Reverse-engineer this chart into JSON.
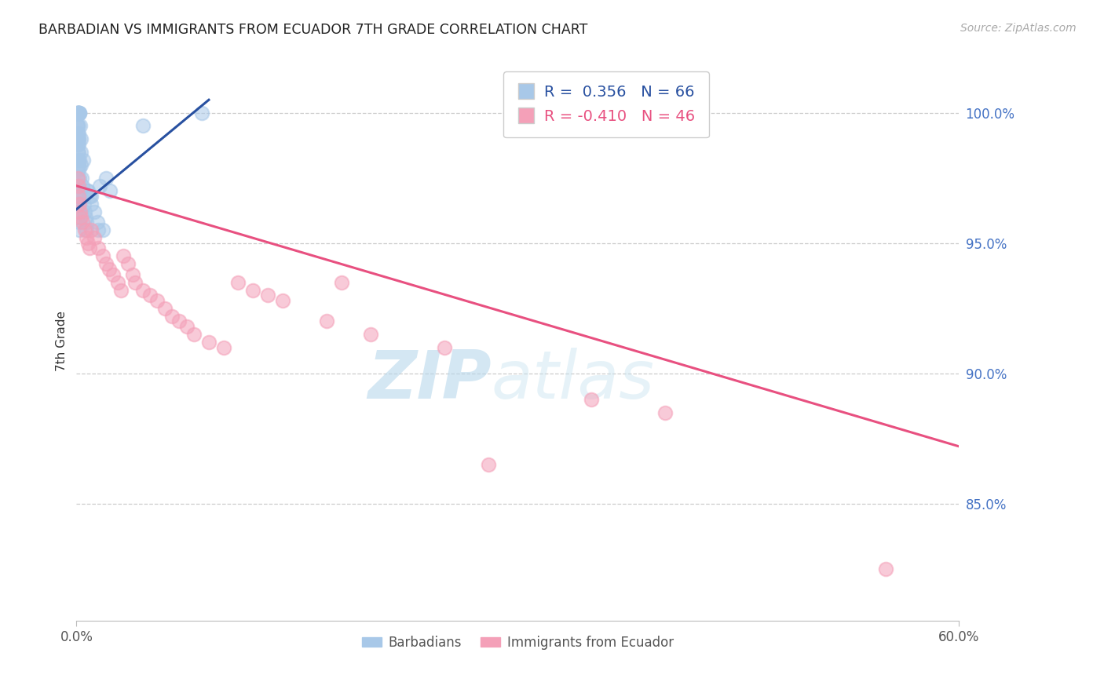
{
  "title": "BARBADIAN VS IMMIGRANTS FROM ECUADOR 7TH GRADE CORRELATION CHART",
  "source": "Source: ZipAtlas.com",
  "ylabel": "7th Grade",
  "xmin": 0.0,
  "xmax": 60.0,
  "ymin": 80.5,
  "ymax": 102.0,
  "yticks": [
    85.0,
    90.0,
    95.0,
    100.0
  ],
  "ytick_labels": [
    "85.0%",
    "90.0%",
    "95.0%",
    "100.0%"
  ],
  "r_blue": 0.356,
  "n_blue": 66,
  "r_pink": -0.41,
  "n_pink": 46,
  "blue_color": "#A8C8E8",
  "pink_color": "#F4A0B8",
  "blue_line_color": "#2850A0",
  "pink_line_color": "#E85080",
  "watermark_zip": "ZIP",
  "watermark_atlas": "atlas",
  "blue_line_x0": 0.0,
  "blue_line_x1": 9.0,
  "blue_line_y0": 96.3,
  "blue_line_y1": 100.5,
  "pink_line_x0": 0.0,
  "pink_line_x1": 60.0,
  "pink_line_y0": 97.2,
  "pink_line_y1": 87.2,
  "blue_scatter_x": [
    0.05,
    0.08,
    0.1,
    0.1,
    0.12,
    0.15,
    0.15,
    0.18,
    0.2,
    0.22,
    0.1,
    0.12,
    0.08,
    0.1,
    0.12,
    0.15,
    0.15,
    0.18,
    0.2,
    0.22,
    0.1,
    0.1,
    0.12,
    0.1,
    0.08,
    0.1,
    0.12,
    0.1,
    0.08,
    0.1,
    0.12,
    0.15,
    0.15,
    0.18,
    0.1,
    0.12,
    0.15,
    0.18,
    0.2,
    0.22,
    0.25,
    0.28,
    0.3,
    0.35,
    0.4,
    0.5,
    0.55,
    0.6,
    0.65,
    0.7,
    0.8,
    0.9,
    1.0,
    1.2,
    1.4,
    1.6,
    1.8,
    2.0,
    2.3,
    8.5,
    0.3,
    0.45,
    0.75,
    1.0,
    1.5,
    4.5
  ],
  "blue_scatter_y": [
    100.0,
    100.0,
    100.0,
    100.0,
    100.0,
    100.0,
    100.0,
    100.0,
    100.0,
    100.0,
    99.5,
    99.2,
    99.5,
    99.0,
    98.8,
    98.5,
    99.0,
    98.2,
    97.9,
    97.5,
    99.5,
    99.2,
    99.0,
    98.8,
    98.5,
    98.2,
    98.0,
    97.8,
    97.5,
    97.2,
    97.0,
    96.8,
    96.5,
    96.2,
    96.8,
    96.5,
    96.2,
    96.0,
    95.8,
    95.5,
    99.5,
    98.5,
    98.0,
    97.5,
    97.2,
    96.5,
    96.2,
    96.0,
    95.8,
    95.5,
    97.0,
    96.8,
    96.5,
    96.2,
    95.8,
    97.2,
    95.5,
    97.5,
    97.0,
    100.0,
    99.0,
    98.2,
    97.0,
    96.8,
    95.5,
    99.5
  ],
  "pink_scatter_x": [
    0.08,
    0.12,
    0.15,
    0.2,
    0.25,
    0.3,
    0.4,
    0.55,
    0.65,
    0.8,
    0.9,
    1.0,
    1.2,
    1.5,
    1.8,
    2.0,
    2.2,
    2.5,
    2.8,
    3.0,
    3.2,
    3.5,
    3.8,
    4.0,
    4.5,
    5.0,
    5.5,
    6.0,
    6.5,
    7.0,
    7.5,
    8.0,
    9.0,
    10.0,
    11.0,
    12.0,
    13.0,
    14.0,
    17.0,
    20.0,
    25.0,
    28.0,
    35.0,
    40.0,
    55.0,
    18.0
  ],
  "pink_scatter_y": [
    97.5,
    97.2,
    96.8,
    96.5,
    96.2,
    96.0,
    95.8,
    95.5,
    95.2,
    95.0,
    94.8,
    95.5,
    95.2,
    94.8,
    94.5,
    94.2,
    94.0,
    93.8,
    93.5,
    93.2,
    94.5,
    94.2,
    93.8,
    93.5,
    93.2,
    93.0,
    92.8,
    92.5,
    92.2,
    92.0,
    91.8,
    91.5,
    91.2,
    91.0,
    93.5,
    93.2,
    93.0,
    92.8,
    92.0,
    91.5,
    91.0,
    86.5,
    89.0,
    88.5,
    82.5,
    93.5
  ]
}
